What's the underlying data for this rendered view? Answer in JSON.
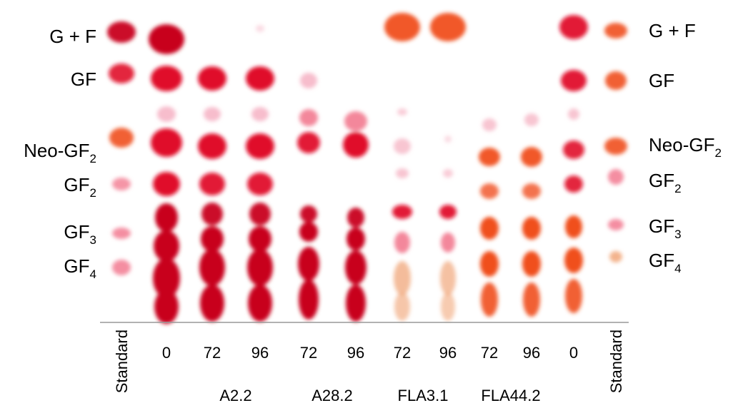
{
  "labels_left": [
    {
      "text": "G + F"
    },
    {
      "text": "GF"
    },
    {
      "text": "Neo-GF",
      "sub": "2"
    },
    {
      "text": "GF",
      "sub": "2"
    },
    {
      "text": "GF",
      "sub": "3"
    },
    {
      "text": "GF",
      "sub": "4"
    }
  ],
  "labels_right": [
    {
      "text": "G + F"
    },
    {
      "text": "GF"
    },
    {
      "text": "Neo-GF",
      "sub": "2"
    },
    {
      "text": "GF",
      "sub": "2"
    },
    {
      "text": "GF",
      "sub": "3"
    },
    {
      "text": "GF",
      "sub": "4"
    }
  ],
  "lanes": [
    "Standard",
    "0",
    "72",
    "96",
    "72",
    "96",
    "72",
    "96",
    "72",
    "96",
    "0",
    "Standard"
  ],
  "groups": [
    "A2.2",
    "A28.2",
    "FLA3.1",
    "FLA44.2"
  ]
}
